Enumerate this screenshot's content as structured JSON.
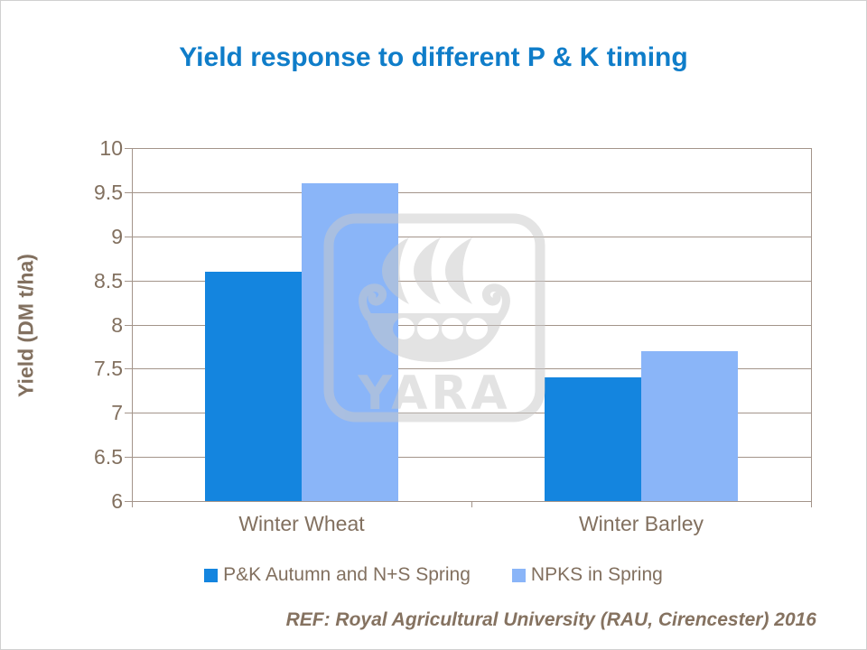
{
  "title": "Yield response to different P & K timing",
  "footer": "REF: Royal Agricultural University (RAU, Cirencester) 2016",
  "watermark": {
    "name": "yara-logo",
    "text": "YARA"
  },
  "colors": {
    "title": "#0F7DC9",
    "text": "#82705F",
    "footer": "#857260",
    "grid": "#A3948A",
    "series1": "#1485DF",
    "series2": "#8AB5F8",
    "watermark": "#C9C9C9"
  },
  "chart_data": {
    "type": "bar",
    "title": "Yield response to different P & K timing",
    "categories": [
      "Winter Wheat",
      "Winter Barley"
    ],
    "series": [
      {
        "name": "P&K Autumn and N+S Spring",
        "color": "#1485DF",
        "values": [
          8.6,
          7.4
        ]
      },
      {
        "name": "NPKS in Spring",
        "color": "#8AB5F8",
        "values": [
          9.6,
          7.7
        ]
      }
    ],
    "xlabel": "",
    "ylabel": "Yield (DM t/ha)",
    "ylim": [
      6,
      10
    ],
    "yticks": [
      6,
      6.5,
      7,
      7.5,
      8,
      8.5,
      9,
      9.5,
      10
    ],
    "ytick_labels": [
      "6",
      "6.5",
      "7",
      "7.5",
      "8",
      "8.5",
      "9",
      "9.5",
      "10"
    ],
    "grid": true,
    "legend_position": "bottom"
  }
}
